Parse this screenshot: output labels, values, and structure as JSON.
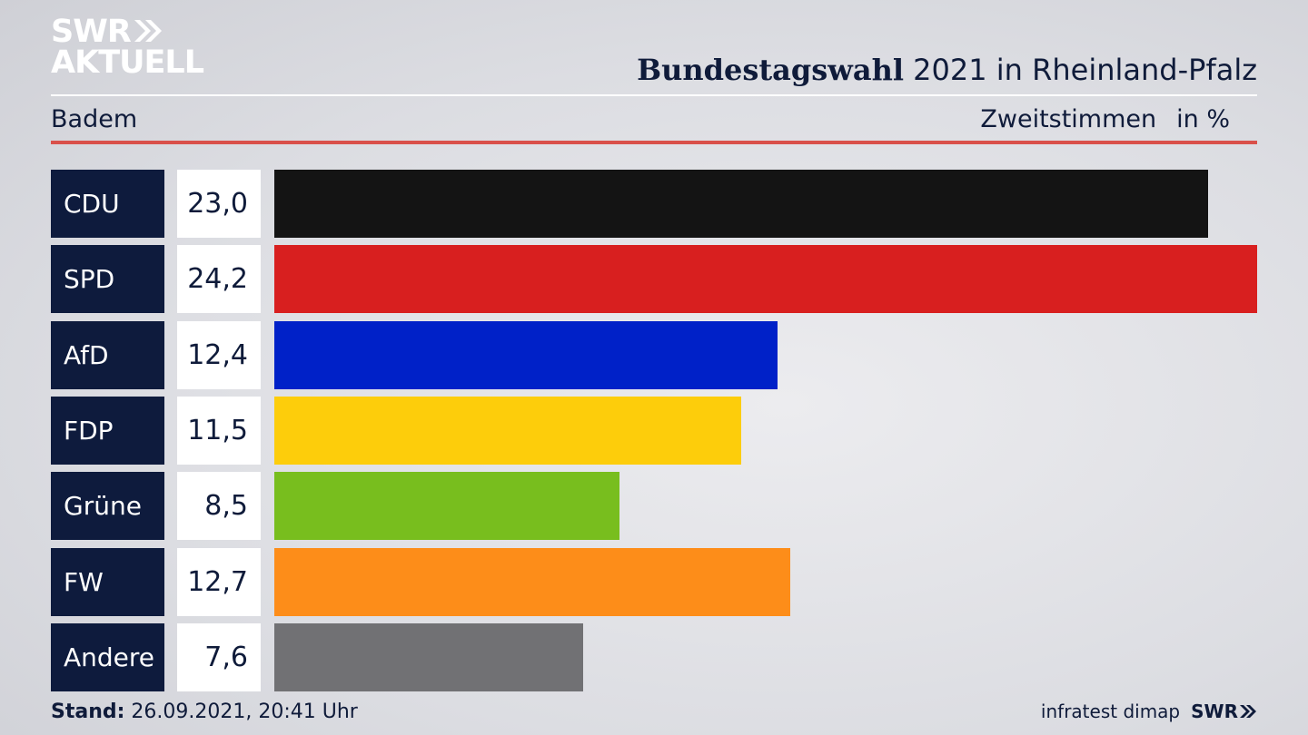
{
  "logo": {
    "line1": "SWR",
    "line2": "AKTUELL"
  },
  "header": {
    "title_bold": "Bundestagswahl",
    "title_rest": "2021 in Rheinland-Pfalz",
    "subtitle": "Badem",
    "measure": "Zweitstimmen",
    "unit": "in %"
  },
  "chart_data": {
    "type": "bar",
    "orientation": "horizontal",
    "categories": [
      "CDU",
      "SPD",
      "AfD",
      "FDP",
      "Grüne",
      "FW",
      "Andere"
    ],
    "values": [
      23.0,
      24.2,
      12.4,
      11.5,
      8.5,
      12.7,
      7.6
    ],
    "value_labels": [
      "23,0",
      "24,2",
      "12,4",
      "11,5",
      "8,5",
      "12,7",
      "7,6"
    ],
    "colors": [
      "#141414",
      "#d81f1f",
      "#0021c8",
      "#fdcd0b",
      "#78be1e",
      "#fd8d19",
      "#717174"
    ],
    "xlim": [
      0,
      24.2
    ],
    "grid": false,
    "legend": "none"
  },
  "footer": {
    "stand_label": "Stand:",
    "stand_value": "26.09.2021, 20:41 Uhr",
    "source": "infratest dimap",
    "brand": "SWR"
  }
}
